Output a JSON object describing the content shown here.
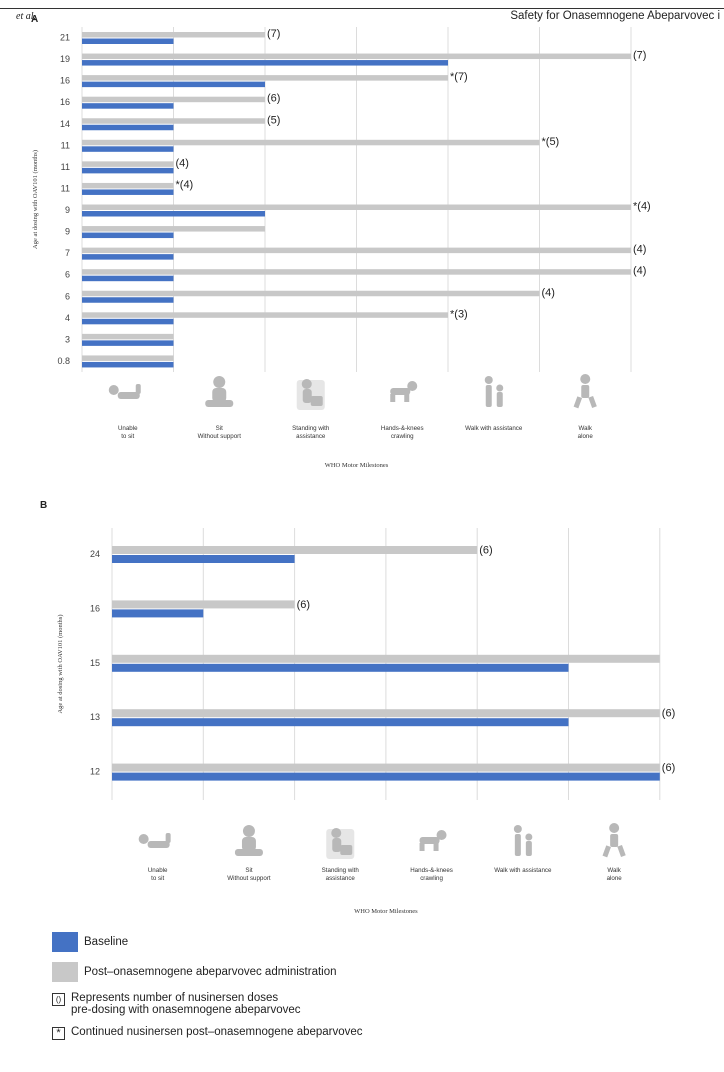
{
  "header": {
    "left": "et al.",
    "right": "Safety for Onasemnogene Abeparvovec i"
  },
  "colors": {
    "baseline": "#4472c4",
    "post": "#c8c8c8"
  },
  "milestones": [
    "Unable\nto sit",
    "Sit\nWithout support",
    "Standing with\nassistance",
    "Hands-&-knees\ncrawling",
    "Walk with assistance",
    "Walk\nalone"
  ],
  "chart_data": [
    {
      "panel": "A",
      "type": "bar",
      "orientation": "horizontal",
      "ylabel": "Age at dosing with OAV101 (months)",
      "xlabel": "WHO Motor Milestones",
      "x_levels": [
        "Unable to sit",
        "Sit Without support",
        "Standing with assistance",
        "Hands-&-knees crawling",
        "Walk with assistance",
        "Walk alone"
      ],
      "categories": [
        "21",
        "19",
        "16",
        "16",
        "14",
        "11",
        "11",
        "11",
        "9",
        "9",
        "7",
        "6",
        "6",
        "4",
        "3",
        "0.8"
      ],
      "series": [
        {
          "name": "Baseline",
          "values": [
            1,
            4,
            2,
            1,
            1,
            1,
            1,
            1,
            2,
            1,
            1,
            1,
            1,
            1,
            1,
            1
          ]
        },
        {
          "name": "Post–onasemnogene abeparvovec administration",
          "values": [
            2,
            6,
            4,
            2,
            2,
            5,
            1,
            1,
            6,
            2,
            6,
            6,
            5,
            4,
            1,
            1
          ]
        }
      ],
      "annotations": [
        "(7)",
        "(7)",
        "*(7)",
        "(6)",
        "(5)",
        "*(5)",
        "(4)",
        "*(4)",
        "*(4)",
        "",
        "(4)",
        "(4)",
        "(4)",
        "*(3)",
        "",
        ""
      ]
    },
    {
      "panel": "B",
      "type": "bar",
      "orientation": "horizontal",
      "ylabel": "Age at dosing with OAV101 (months)",
      "xlabel": "WHO Motor Milestones",
      "x_levels": [
        "Unable to sit",
        "Sit Without support",
        "Standing with assistance",
        "Hands-&-knees crawling",
        "Walk with assistance",
        "Walk alone"
      ],
      "categories": [
        "24",
        "16",
        "15",
        "13",
        "12"
      ],
      "series": [
        {
          "name": "Baseline",
          "values": [
            2,
            1,
            5,
            5,
            6
          ]
        },
        {
          "name": "Post–onasemnogene abeparvovec administration",
          "values": [
            4,
            2,
            6,
            6,
            6
          ]
        }
      ],
      "annotations": [
        "(6)",
        "(6)",
        "",
        "(6)",
        "(6)"
      ]
    }
  ],
  "legend": {
    "baseline": "Baseline",
    "post": "Post–onasemnogene abeparvovec administration",
    "paren_symbol": "()",
    "paren_line1": "Represents number of nusinersen doses",
    "paren_line2": "pre-dosing with onasemnogene abeparvovec",
    "star_symbol": "*",
    "star": "Continued nusinersen post–onasemnogene abeparvovec"
  }
}
